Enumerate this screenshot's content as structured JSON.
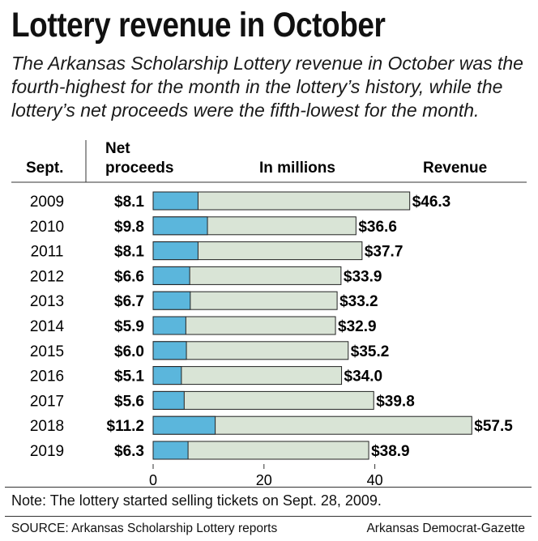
{
  "title": "Lottery revenue in October",
  "subtitle_lines": [
    "The Arkansas Scholarship Lottery revenue in October was the",
    "fourth-highest for the month in the lottery’s history, while the",
    "lottery’s net proceeds were the fifth-lowest for the month."
  ],
  "headers": {
    "year": "Sept.",
    "net_line1": "Net",
    "net_line2": "proceeds",
    "units": "In millions",
    "revenue": "Revenue"
  },
  "chart_data": {
    "type": "bar",
    "orientation": "horizontal",
    "categories": [
      "2009",
      "2010",
      "2011",
      "2012",
      "2013",
      "2014",
      "2015",
      "2016",
      "2017",
      "2018",
      "2019"
    ],
    "series": [
      {
        "name": "Net proceeds",
        "values": [
          8.1,
          9.8,
          8.1,
          6.6,
          6.7,
          5.9,
          6.0,
          5.1,
          5.6,
          11.2,
          6.3
        ],
        "color": "#5bb6dc"
      },
      {
        "name": "Revenue",
        "values": [
          46.3,
          36.6,
          37.7,
          33.9,
          33.2,
          32.9,
          35.2,
          34.0,
          39.8,
          57.5,
          38.9
        ],
        "color": "#d9e4d6"
      }
    ],
    "net_labels": [
      "$8.1",
      "$9.8",
      "$8.1",
      "$6.6",
      "$6.7",
      "$5.9",
      "$6.0",
      "$5.1",
      "$5.6",
      "$11.2",
      "$6.3"
    ],
    "revenue_labels": [
      "$46.3",
      "$36.6",
      "$37.7",
      "$33.9",
      "$33.2",
      "$32.9",
      "$35.2",
      "$34.0",
      "$39.8",
      "$57.5",
      "$38.9"
    ],
    "x_ticks": [
      0,
      20,
      40
    ],
    "x_tick_labels": [
      "0",
      "20",
      "40"
    ],
    "xlim": [
      0,
      60
    ],
    "xlabel": "In millions",
    "ylabel": "Sept."
  },
  "note": "Note: The lottery started selling tickets on Sept. 28, 2009.",
  "source": "SOURCE: Arkansas Scholarship Lottery reports",
  "credit": "Arkansas Democrat-Gazette"
}
